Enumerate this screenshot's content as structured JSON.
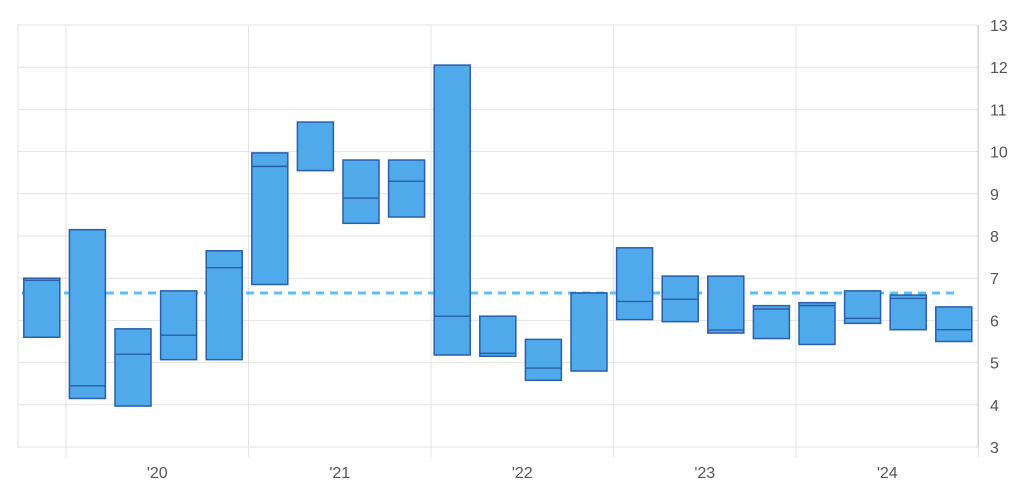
{
  "chart_data": {
    "type": "bar",
    "subtype": "floating-range-quarterly",
    "x_tick_labels": [
      "'20",
      "'21",
      "'22",
      "'23",
      "'24"
    ],
    "y_tick_labels": [
      "3",
      "4",
      "5",
      "6",
      "7",
      "8",
      "9",
      "10",
      "11",
      "12",
      "13"
    ],
    "ylim": [
      3,
      13
    ],
    "y_axis_side": "right",
    "grid": true,
    "legend": "none",
    "reference_line": {
      "value": 6.65,
      "style": "dashed",
      "color": "#5bc0f8"
    },
    "colors": {
      "box_fill": "#4fa9eb",
      "box_stroke": "#2a5ea8",
      "grid": "#e3e3e3"
    },
    "ranges": [
      {
        "low": 5.6,
        "high": 7.0,
        "mark": 6.95
      },
      {
        "low": 4.15,
        "high": 8.15,
        "mark": 4.45
      },
      {
        "low": 3.97,
        "high": 5.8,
        "mark": 5.2
      },
      {
        "low": 5.07,
        "high": 6.7,
        "mark": 5.65
      },
      {
        "low": 5.07,
        "high": 7.65,
        "mark": 7.25
      },
      {
        "low": 6.85,
        "high": 9.97,
        "mark": 9.65
      },
      {
        "low": 9.55,
        "high": 10.7,
        "mark": null
      },
      {
        "low": 8.3,
        "high": 9.8,
        "mark": 8.9
      },
      {
        "low": 8.45,
        "high": 9.8,
        "mark": 9.3
      },
      {
        "low": 5.18,
        "high": 12.05,
        "mark": 6.1
      },
      {
        "low": 5.15,
        "high": 6.1,
        "mark": 5.22
      },
      {
        "low": 4.58,
        "high": 5.55,
        "mark": 4.87
      },
      {
        "low": 4.8,
        "high": 6.65,
        "mark": 6.65
      },
      {
        "low": 6.02,
        "high": 7.72,
        "mark": 6.45
      },
      {
        "low": 5.97,
        "high": 7.05,
        "mark": 6.5
      },
      {
        "low": 5.7,
        "high": 7.05,
        "mark": 5.77
      },
      {
        "low": 5.57,
        "high": 6.35,
        "mark": 6.27
      },
      {
        "low": 5.43,
        "high": 6.42,
        "mark": 6.35
      },
      {
        "low": 5.93,
        "high": 6.7,
        "mark": 6.05
      },
      {
        "low": 5.78,
        "high": 6.6,
        "mark": 6.52
      },
      {
        "low": 5.5,
        "high": 6.32,
        "mark": 5.78
      }
    ]
  }
}
